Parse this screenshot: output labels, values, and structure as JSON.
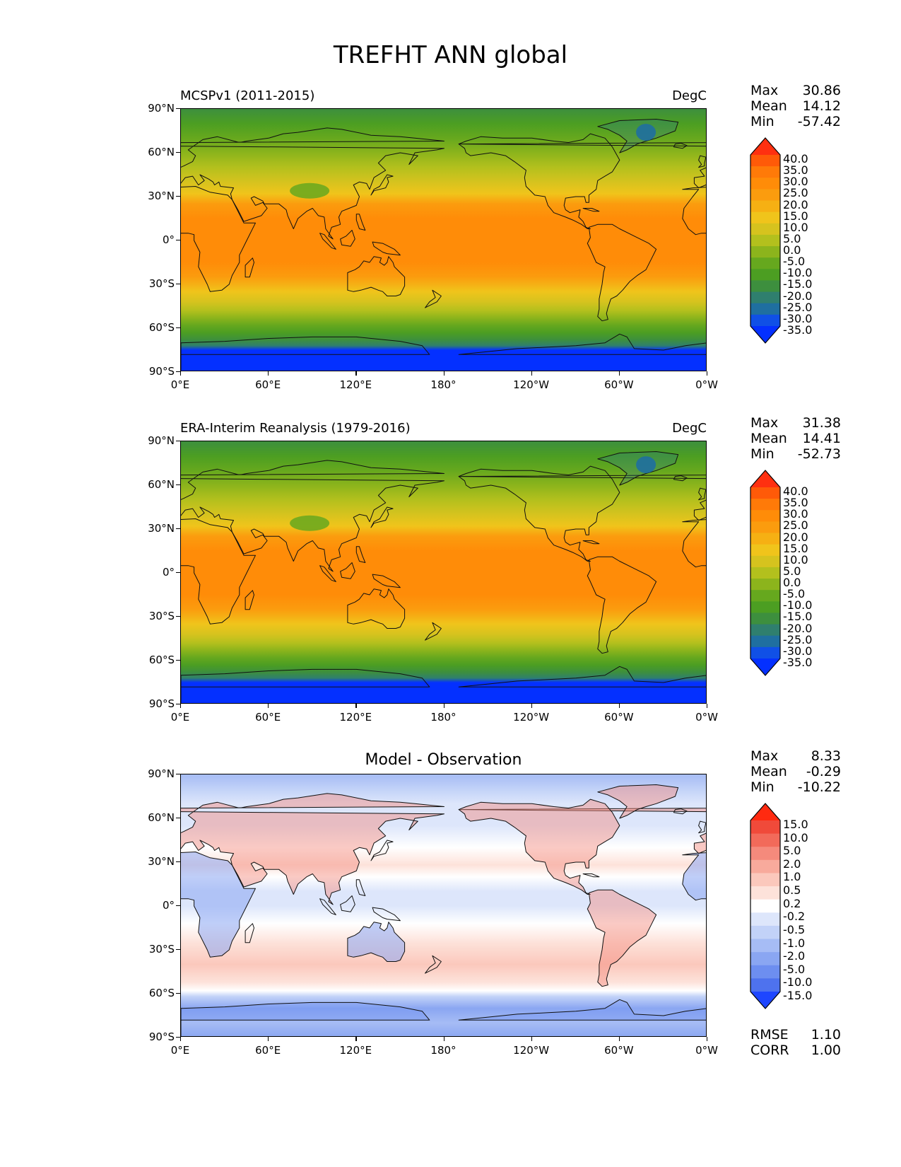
{
  "figure": {
    "title": "TREFHT ANN global"
  },
  "axes": {
    "lat_ticks": [
      "90°N",
      "60°N",
      "30°N",
      "0°",
      "30°S",
      "60°S",
      "90°S"
    ],
    "lon_ticks": [
      "0°E",
      "60°E",
      "120°E",
      "180°",
      "120°W",
      "60°W",
      "0°W"
    ]
  },
  "panels": [
    {
      "id": "model",
      "title": "MCSPv1 (2011-2015)",
      "units": "DegC",
      "stats": [
        {
          "label": "Max",
          "value": "30.86"
        },
        {
          "label": "Mean",
          "value": "14.12"
        },
        {
          "label": "Min",
          "value": "-57.42"
        }
      ],
      "colorbar": {
        "labels": [
          "40.0",
          "35.0",
          "30.0",
          "25.0",
          "20.0",
          "15.0",
          "10.0",
          "5.0",
          "0.0",
          "-5.0",
          "-10.0",
          "-15.0",
          "-20.0",
          "-25.0",
          "-30.0",
          "-35.0"
        ],
        "colors": [
          "#ff3010",
          "#ff5a08",
          "#ff7a08",
          "#ff8c08",
          "#fb9c0e",
          "#f6b013",
          "#f0c41b",
          "#d6c31e",
          "#b3c01d",
          "#8cb41c",
          "#66a81e",
          "#4c9e22",
          "#3d8f3e",
          "#2f7f6e",
          "#1f6fa0",
          "#1050e6",
          "#0430ff"
        ]
      },
      "chart_data": {
        "type": "heatmap",
        "variable": "TREFHT",
        "units": "DegC",
        "lat_range": [
          -90,
          90
        ],
        "lon_range": [
          0,
          360
        ],
        "max": 30.86,
        "mean": 14.12,
        "min": -57.42
      }
    },
    {
      "id": "obs",
      "title": "ERA-Interim Reanalysis (1979-2016)",
      "units": "DegC",
      "stats": [
        {
          "label": "Max",
          "value": "31.38"
        },
        {
          "label": "Mean",
          "value": "14.41"
        },
        {
          "label": "Min",
          "value": "-52.73"
        }
      ],
      "colorbar": {
        "labels": [
          "40.0",
          "35.0",
          "30.0",
          "25.0",
          "20.0",
          "15.0",
          "10.0",
          "5.0",
          "0.0",
          "-5.0",
          "-10.0",
          "-15.0",
          "-20.0",
          "-25.0",
          "-30.0",
          "-35.0"
        ],
        "colors": [
          "#ff3010",
          "#ff5a08",
          "#ff7a08",
          "#ff8c08",
          "#fb9c0e",
          "#f6b013",
          "#f0c41b",
          "#d6c31e",
          "#b3c01d",
          "#8cb41c",
          "#66a81e",
          "#4c9e22",
          "#3d8f3e",
          "#2f7f6e",
          "#1f6fa0",
          "#1050e6",
          "#0430ff"
        ]
      },
      "chart_data": {
        "type": "heatmap",
        "variable": "TREFHT",
        "units": "DegC",
        "lat_range": [
          -90,
          90
        ],
        "lon_range": [
          0,
          360
        ],
        "max": 31.38,
        "mean": 14.41,
        "min": -52.73
      }
    },
    {
      "id": "diff",
      "title": "Model - Observation",
      "units": "",
      "stats": [
        {
          "label": "Max",
          "value": "8.33"
        },
        {
          "label": "Mean",
          "value": "-0.29"
        },
        {
          "label": "Min",
          "value": "-10.22"
        }
      ],
      "extra_stats": [
        {
          "label": "RMSE",
          "value": "1.10"
        },
        {
          "label": "CORR",
          "value": "1.00"
        }
      ],
      "colorbar": {
        "labels": [
          "15.0",
          "10.0",
          "5.0",
          "2.0",
          "1.0",
          "0.5",
          "0.2",
          "-0.2",
          "-0.5",
          "-1.0",
          "-2.0",
          "-5.0",
          "-10.0",
          "-15.0"
        ],
        "colors": [
          "#ff2a10",
          "#f04a3a",
          "#f26a5a",
          "#f58a7c",
          "#f8aa9c",
          "#fbc8bc",
          "#fde2da",
          "#ffffff",
          "#dde6fb",
          "#c2d2f8",
          "#a6bcf5",
          "#8aa6f2",
          "#6d8ef0",
          "#4e72ee",
          "#1e46ff"
        ]
      },
      "chart_data": {
        "type": "heatmap",
        "variable": "TREFHT difference",
        "lat_range": [
          -90,
          90
        ],
        "lon_range": [
          0,
          360
        ],
        "max": 8.33,
        "mean": -0.29,
        "min": -10.22,
        "rmse": 1.1,
        "corr": 1.0
      }
    }
  ]
}
